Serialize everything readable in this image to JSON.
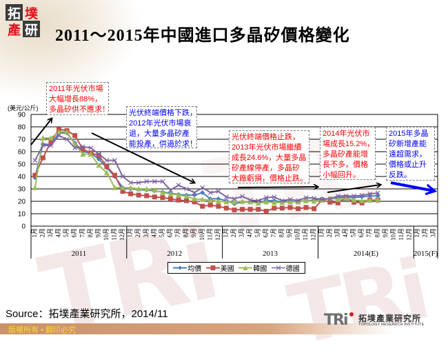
{
  "header": {
    "logo_chars": [
      "拓",
      "墣",
      "產",
      "研"
    ],
    "title": "2011～2015年中國進口多晶矽價格變化"
  },
  "chart_data": {
    "type": "line",
    "title": "2011～2015年中國進口多晶矽價格變化",
    "xlabel": "",
    "ylabel": "(美元/公斤)",
    "ylim": [
      0,
      90
    ],
    "yticks": [
      0,
      10,
      20,
      30,
      40,
      50,
      60,
      70,
      80,
      90
    ],
    "grid": "horizontal",
    "legend_position": "bottom",
    "x_groups": [
      {
        "label": "2011",
        "months": 12
      },
      {
        "label": "2012",
        "months": 12
      },
      {
        "label": "2013",
        "months": 12
      },
      {
        "label": "2014(E)",
        "months": 12
      },
      {
        "label": "2015(F)",
        "months": 3
      }
    ],
    "categories": [
      "1月",
      "2月",
      "3月",
      "4月",
      "5月",
      "6月",
      "7月",
      "8月",
      "9月",
      "10月",
      "11月",
      "12月",
      "1月",
      "2月",
      "3月",
      "4月",
      "5月",
      "6月",
      "7月",
      "8月",
      "9月",
      "10月",
      "11月",
      "12月",
      "1月",
      "2月",
      "3月",
      "4月",
      "5月",
      "6月",
      "7月",
      "8月",
      "9月",
      "10月",
      "11月",
      "12月",
      "1月",
      "2月",
      "3月",
      "4月",
      "5月",
      "6月",
      "7月",
      "8月",
      "9月",
      "10月",
      "11月",
      "12月",
      "1月",
      "2月",
      "3月"
    ],
    "series": [
      {
        "name": "均價",
        "color": "#4a7ebb",
        "marker": "diamond",
        "values": [
          39,
          66,
          66,
          75,
          75,
          67,
          60,
          59,
          54,
          47,
          40,
          31,
          30,
          29.5,
          29,
          28.5,
          27.5,
          26.5,
          25.5,
          25,
          25,
          27,
          22,
          22,
          20.5,
          18,
          19.5,
          19.5,
          19,
          20.5,
          20.5,
          19.5,
          19.5,
          20,
          20.5,
          21,
          22,
          22,
          23,
          23.3,
          23,
          23.7,
          24.3,
          24.3,
          null,
          null,
          null,
          null,
          null,
          null,
          null
        ]
      },
      {
        "name": "美國",
        "color": "#c0504d",
        "marker": "square",
        "values": [
          41,
          55,
          68,
          78,
          77,
          73,
          62,
          59,
          57,
          48,
          41,
          28,
          26,
          25,
          24.5,
          23.5,
          23,
          22,
          21,
          20.5,
          19.5,
          16,
          17,
          16,
          14.5,
          13,
          13.5,
          13.5,
          13.5,
          12,
          14.5,
          14.5,
          15,
          14,
          15,
          14,
          21,
          19.3,
          18.7,
          23,
          19.3,
          18.7,
          21,
          21,
          null,
          null,
          null,
          null,
          null,
          null,
          null
        ]
      },
      {
        "name": "韓國",
        "color": "#9bbb59",
        "marker": "triangle",
        "values": [
          31,
          71,
          71,
          76,
          76,
          66,
          58,
          58,
          49,
          43,
          31,
          31,
          31,
          30,
          30,
          29,
          27,
          26,
          25,
          24,
          22,
          21.5,
          21,
          20,
          19.5,
          19.5,
          20,
          19.5,
          18.5,
          19.5,
          19,
          19,
          19.5,
          19.5,
          20.5,
          20,
          21,
          22.4,
          21.5,
          22.4,
          21,
          20.5,
          21,
          21.5,
          null,
          null,
          null,
          null,
          null,
          null,
          null
        ]
      },
      {
        "name": "德國",
        "color": "#8064a2",
        "marker": "x",
        "values": [
          53,
          65,
          65,
          73,
          70,
          63,
          64,
          63,
          58,
          53,
          53,
          40,
          35,
          35,
          36,
          36,
          36,
          29,
          33,
          30,
          27,
          31,
          27,
          28,
          23.5,
          22,
          24,
          21,
          20.5,
          23,
          23.5,
          20.5,
          21.5,
          20.5,
          23,
          22.5,
          21.5,
          22,
          24.3,
          24.3,
          24.3,
          24.8,
          26,
          26.7,
          null,
          null,
          null,
          null,
          null,
          null,
          null
        ]
      }
    ],
    "annotations": [
      {
        "color": "#ff0000",
        "lines": [
          "2011年光伏市場",
          "大幅增長88%，",
          "多晶矽供不應求！"
        ]
      },
      {
        "color": "#0000ff",
        "lines": [
          "光伏終端價格下跌，",
          "2012年光伏市場衰",
          "退，大量多晶矽產",
          "能投產，供過於求！"
        ]
      },
      {
        "color": "#ff0000",
        "lines": [
          "光伏終端價格止跌，",
          "2013年光伏市場繼續",
          "成長24.6%，大量多晶",
          "矽產線停產，多晶矽",
          "大廠虧損，價格止跌。"
        ]
      },
      {
        "color": "#ff0000",
        "lines": [
          "2014年光伏市",
          "場成長15.2%，",
          "多晶矽產能增",
          "長不多，價格",
          "小幅回升。"
        ]
      },
      {
        "color": "#0000ff",
        "lines": [
          "2015年多晶",
          "矽新增產能",
          "遠超需求，",
          "價格或止升",
          "反跌。"
        ]
      }
    ]
  },
  "source": "Source：拓墣產業研究所，2014/11",
  "footer": {
    "copyright": "版權所有 • 翻印必究",
    "brand_logo": "TRi",
    "brand_name_zh": "拓墣產業研究所",
    "brand_name_en": "TOPOLOGY RESEARCH INSTITUTE"
  },
  "colors": {
    "arrow_trend": "#000000",
    "arrow_forecast": "#0000ff",
    "footer_bar": "#c9926a",
    "footer_text": "#ffd62a",
    "logo_red": "#e0131d"
  }
}
